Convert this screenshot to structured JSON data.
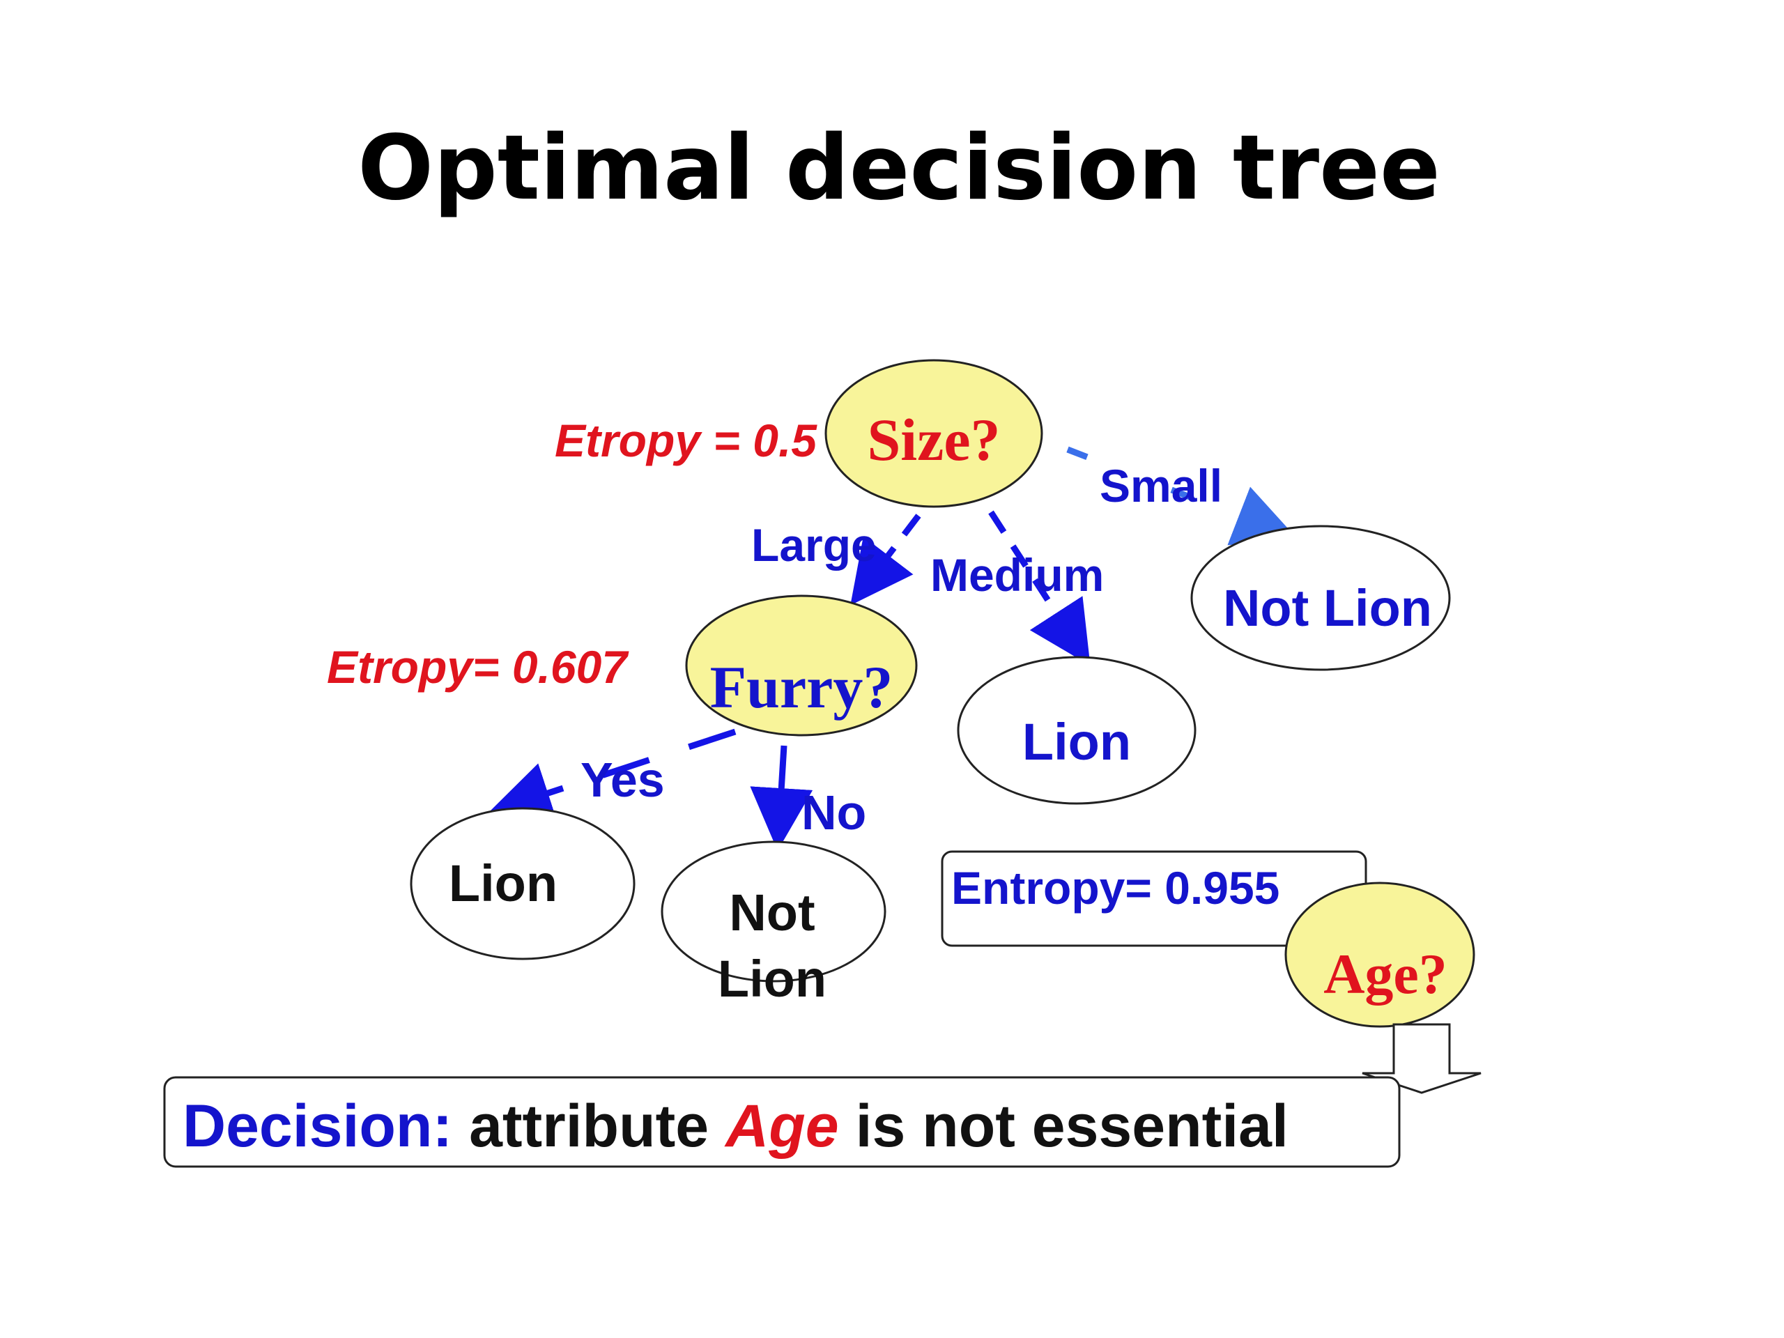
{
  "title": "Optimal decision tree",
  "colors": {
    "node_fill": "#F8F49A",
    "edge_blue": "#1414E6",
    "edge_light_blue": "#3A6FEA",
    "entropy_red": "#E0141E",
    "label_blue": "#1414CC",
    "outline": "#222222"
  },
  "tree": {
    "root": {
      "question": "Size?",
      "entropy": "Etropy = 0.5"
    },
    "branches": {
      "large": "Large",
      "medium": "Medium",
      "small": "Small"
    },
    "furry": {
      "question": "Furry?",
      "entropy": "Etropy= 0.607"
    },
    "furry_branches": {
      "yes": "Yes",
      "no": "No"
    },
    "leaves": {
      "small": "Not Lion",
      "medium": "Lion",
      "furry_yes": "Lion",
      "furry_no_line1": "Not",
      "furry_no_line2": "Lion"
    },
    "age": {
      "question": "Age?",
      "entropy": "Entropy= 0.955"
    }
  },
  "decision": {
    "label": "Decision:",
    "text_before": "attribute",
    "attribute": "Age",
    "text_after": "is not essential"
  }
}
